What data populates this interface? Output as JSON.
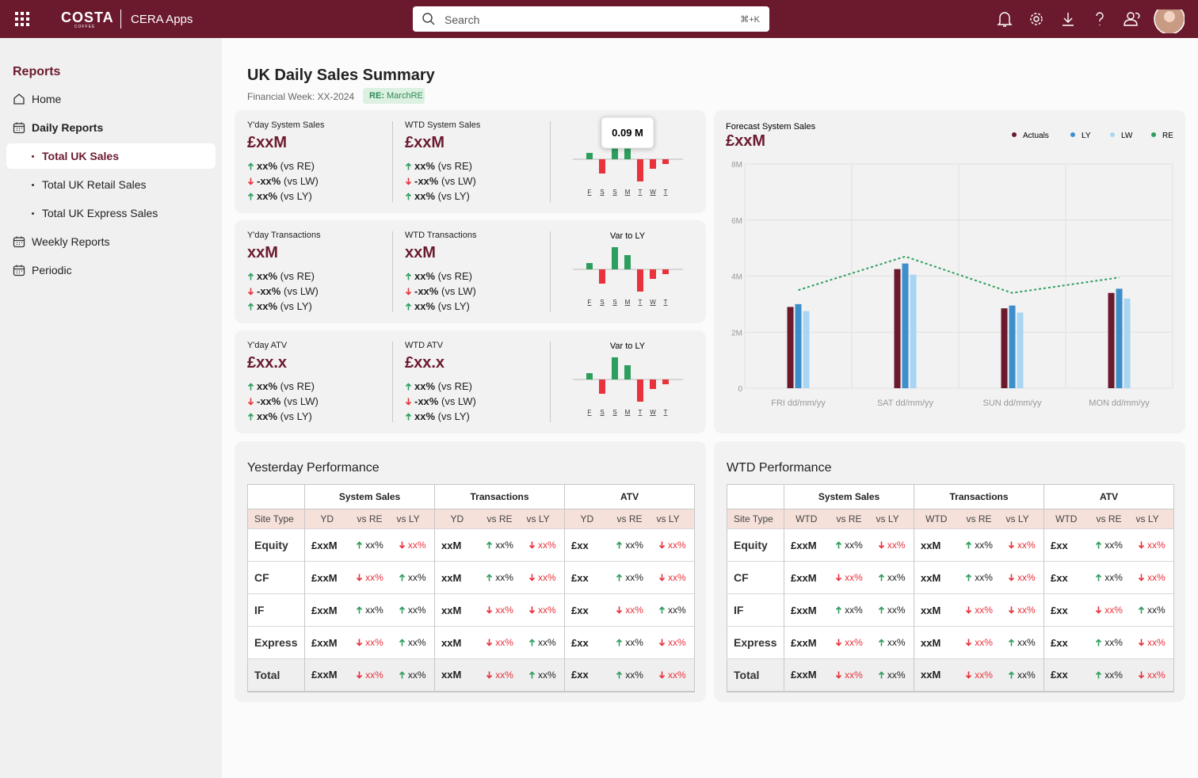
{
  "header": {
    "logo": "COSTA",
    "logo_sub": "COFFEE",
    "app": "CERA Apps",
    "search_placeholder": "Search",
    "shortcut": "⌘+K"
  },
  "sidebar": {
    "title": "Reports",
    "items": [
      {
        "label": "Home",
        "icon": "home"
      },
      {
        "label": "Daily Reports",
        "icon": "calendar",
        "children": [
          "Total UK Sales",
          "Total UK Retail Sales",
          "Total UK Express Sales"
        ],
        "selected": 0
      },
      {
        "label": "Weekly Reports",
        "icon": "calendar"
      },
      {
        "label": "Periodic",
        "icon": "calendar"
      }
    ]
  },
  "page": {
    "title": "UK Daily Sales Summary",
    "subtitle": "Financial Week: XX-2024",
    "badge_key": "RE:",
    "badge_value": "MarchRE"
  },
  "kpis": {
    "days": [
      "F",
      "S",
      "S",
      "M",
      "T",
      "W",
      "T"
    ],
    "positive_color": "#2e9e5e",
    "negative_color": "#e8323c",
    "rows": [
      {
        "metrics": [
          {
            "label": "Y'day System Sales",
            "value": "£xxM",
            "comparisons": [
              {
                "dir": "up",
                "value": "xx%",
                "label": "(vs RE)"
              },
              {
                "dir": "down",
                "value": "-xx%",
                "label": "(vs LW)"
              },
              {
                "dir": "up",
                "value": "xx%",
                "label": "(vs LY)"
              }
            ]
          },
          {
            "label": "WTD System Sales",
            "value": "£xxM",
            "comparisons": [
              {
                "dir": "up",
                "value": "xx%",
                "label": "(vs RE)"
              },
              {
                "dir": "down",
                "value": "-xx%",
                "label": "(vs LW)"
              },
              {
                "dir": "up",
                "value": "xx%",
                "label": "(vs LY)"
              }
            ]
          }
        ],
        "chart": {
          "tooltip": "0.09 M",
          "values": [
            0.04,
            -0.09,
            0.14,
            0.09,
            -0.14,
            -0.06,
            -0.03
          ]
        }
      },
      {
        "metrics": [
          {
            "label": "Y'day Transactions",
            "value": "xxM",
            "comparisons": [
              {
                "dir": "up",
                "value": "xx%",
                "label": "(vs RE)"
              },
              {
                "dir": "down",
                "value": "-xx%",
                "label": "(vs LW)"
              },
              {
                "dir": "up",
                "value": "xx%",
                "label": "(vs LY)"
              }
            ]
          },
          {
            "label": "WTD Transactions",
            "value": "xxM",
            "comparisons": [
              {
                "dir": "up",
                "value": "xx%",
                "label": "(vs RE)"
              },
              {
                "dir": "down",
                "value": "-xx%",
                "label": "(vs LW)"
              },
              {
                "dir": "up",
                "value": "xx%",
                "label": "(vs LY)"
              }
            ]
          }
        ],
        "chart": {
          "title": "Var to LY",
          "values": [
            0.04,
            -0.09,
            0.14,
            0.09,
            -0.14,
            -0.06,
            -0.03
          ]
        }
      },
      {
        "metrics": [
          {
            "label": "Y'day ATV",
            "value": "£xx.x",
            "comparisons": [
              {
                "dir": "up",
                "value": "xx%",
                "label": "(vs RE)"
              },
              {
                "dir": "down",
                "value": "-xx%",
                "label": "(vs LW)"
              },
              {
                "dir": "up",
                "value": "xx%",
                "label": "(vs LY)"
              }
            ]
          },
          {
            "label": "WTD ATV",
            "value": "£xx.x",
            "comparisons": [
              {
                "dir": "up",
                "value": "xx%",
                "label": "(vs RE)"
              },
              {
                "dir": "down",
                "value": "-xx%",
                "label": "(vs LW)"
              },
              {
                "dir": "up",
                "value": "xx%",
                "label": "(vs LY)"
              }
            ]
          }
        ],
        "chart": {
          "title": "Var to LY",
          "values": [
            0.04,
            -0.09,
            0.14,
            0.09,
            -0.14,
            -0.06,
            -0.03
          ]
        }
      }
    ]
  },
  "chart_data": {
    "type": "bar",
    "title": "Forecast System Sales",
    "subtitle": "£xxM",
    "categories": [
      "FRI dd/mm/yy",
      "SAT dd/mm/yy",
      "SUN dd/mm/yy",
      "MON dd/mm/yy"
    ],
    "series": [
      {
        "name": "Actuals",
        "color": "#6b1a2e",
        "values": [
          2.9,
          4.25,
          2.85,
          3.4
        ]
      },
      {
        "name": "LY",
        "color": "#3d8fcc",
        "values": [
          3.0,
          4.45,
          2.95,
          3.55
        ]
      },
      {
        "name": "LW",
        "color": "#a8d5f2",
        "values": [
          2.75,
          4.05,
          2.7,
          3.2
        ]
      },
      {
        "name": "RE",
        "color": "#2e9e5e",
        "type": "line",
        "dashed": true,
        "values": [
          3.5,
          4.7,
          3.4,
          3.95
        ]
      }
    ],
    "ylim": [
      0,
      8
    ],
    "yticks": [
      0,
      {
        "value": 2,
        "label": "2M"
      },
      {
        "value": 4,
        "label": "4M"
      },
      {
        "value": 6,
        "label": "6M"
      },
      {
        "value": 8,
        "label": "8M"
      }
    ],
    "grid": true,
    "legend": "top-right"
  },
  "tables": [
    {
      "title": "Yesterday Performance",
      "groups": [
        "System Sales",
        "Transactions",
        "ATV"
      ],
      "columns": [
        "Site Type",
        "YD",
        "vs RE",
        "vs LY",
        "YD",
        "vs RE",
        "vs LY",
        "YD",
        "vs RE",
        "vs LY"
      ],
      "rows": [
        {
          "label": "Equity",
          "cells": [
            "£xxM",
            {
              "dir": "up",
              "text": "xx%"
            },
            {
              "dir": "down",
              "text": "xx%"
            },
            "xxM",
            {
              "dir": "up",
              "text": "xx%"
            },
            {
              "dir": "down",
              "text": "xx%"
            },
            "£xx",
            {
              "dir": "up",
              "text": "xx%"
            },
            {
              "dir": "down",
              "text": "xx%"
            }
          ]
        },
        {
          "label": "CF",
          "cells": [
            "£xxM",
            {
              "dir": "down",
              "text": "xx%"
            },
            {
              "dir": "up",
              "text": "xx%"
            },
            "xxM",
            {
              "dir": "up",
              "text": "xx%"
            },
            {
              "dir": "down",
              "text": "xx%"
            },
            "£xx",
            {
              "dir": "up",
              "text": "xx%"
            },
            {
              "dir": "down",
              "text": "xx%"
            }
          ]
        },
        {
          "label": "IF",
          "cells": [
            "£xxM",
            {
              "dir": "up",
              "text": "xx%"
            },
            {
              "dir": "up",
              "text": "xx%"
            },
            "xxM",
            {
              "dir": "down",
              "text": "xx%"
            },
            {
              "dir": "down",
              "text": "xx%"
            },
            "£xx",
            {
              "dir": "down",
              "text": "xx%"
            },
            {
              "dir": "up",
              "text": "xx%"
            }
          ]
        },
        {
          "label": "Express",
          "cells": [
            "£xxM",
            {
              "dir": "down",
              "text": "xx%"
            },
            {
              "dir": "up",
              "text": "xx%"
            },
            "xxM",
            {
              "dir": "down",
              "text": "xx%"
            },
            {
              "dir": "up",
              "text": "xx%"
            },
            "£xx",
            {
              "dir": "up",
              "text": "xx%"
            },
            {
              "dir": "down",
              "text": "xx%"
            }
          ]
        },
        {
          "label": "Total",
          "cells": [
            "£xxM",
            {
              "dir": "down",
              "text": "xx%"
            },
            {
              "dir": "up",
              "text": "xx%"
            },
            "xxM",
            {
              "dir": "down",
              "text": "xx%"
            },
            {
              "dir": "up",
              "text": "xx%"
            },
            "£xx",
            {
              "dir": "up",
              "text": "xx%"
            },
            {
              "dir": "down",
              "text": "xx%"
            }
          ]
        }
      ]
    },
    {
      "title": "WTD Performance",
      "groups": [
        "System Sales",
        "Transactions",
        "ATV"
      ],
      "columns": [
        "Site Type",
        "WTD",
        "vs RE",
        "vs LY",
        "WTD",
        "vs RE",
        "vs LY",
        "WTD",
        "vs RE",
        "vs LY"
      ],
      "rows": [
        {
          "label": "Equity",
          "cells": [
            "£xxM",
            {
              "dir": "up",
              "text": "xx%"
            },
            {
              "dir": "down",
              "text": "xx%"
            },
            "xxM",
            {
              "dir": "up",
              "text": "xx%"
            },
            {
              "dir": "down",
              "text": "xx%"
            },
            "£xx",
            {
              "dir": "up",
              "text": "xx%"
            },
            {
              "dir": "down",
              "text": "xx%"
            }
          ]
        },
        {
          "label": "CF",
          "cells": [
            "£xxM",
            {
              "dir": "down",
              "text": "xx%"
            },
            {
              "dir": "up",
              "text": "xx%"
            },
            "xxM",
            {
              "dir": "up",
              "text": "xx%"
            },
            {
              "dir": "down",
              "text": "xx%"
            },
            "£xx",
            {
              "dir": "up",
              "text": "xx%"
            },
            {
              "dir": "down",
              "text": "xx%"
            }
          ]
        },
        {
          "label": "IF",
          "cells": [
            "£xxM",
            {
              "dir": "up",
              "text": "xx%"
            },
            {
              "dir": "up",
              "text": "xx%"
            },
            "xxM",
            {
              "dir": "down",
              "text": "xx%"
            },
            {
              "dir": "down",
              "text": "xx%"
            },
            "£xx",
            {
              "dir": "down",
              "text": "xx%"
            },
            {
              "dir": "up",
              "text": "xx%"
            }
          ]
        },
        {
          "label": "Express",
          "cells": [
            "£xxM",
            {
              "dir": "down",
              "text": "xx%"
            },
            {
              "dir": "up",
              "text": "xx%"
            },
            "xxM",
            {
              "dir": "down",
              "text": "xx%"
            },
            {
              "dir": "up",
              "text": "xx%"
            },
            "£xx",
            {
              "dir": "up",
              "text": "xx%"
            },
            {
              "dir": "down",
              "text": "xx%"
            }
          ]
        },
        {
          "label": "Total",
          "cells": [
            "£xxM",
            {
              "dir": "down",
              "text": "xx%"
            },
            {
              "dir": "up",
              "text": "xx%"
            },
            "xxM",
            {
              "dir": "down",
              "text": "xx%"
            },
            {
              "dir": "up",
              "text": "xx%"
            },
            "£xx",
            {
              "dir": "up",
              "text": "xx%"
            },
            {
              "dir": "down",
              "text": "xx%"
            }
          ]
        }
      ]
    }
  ]
}
